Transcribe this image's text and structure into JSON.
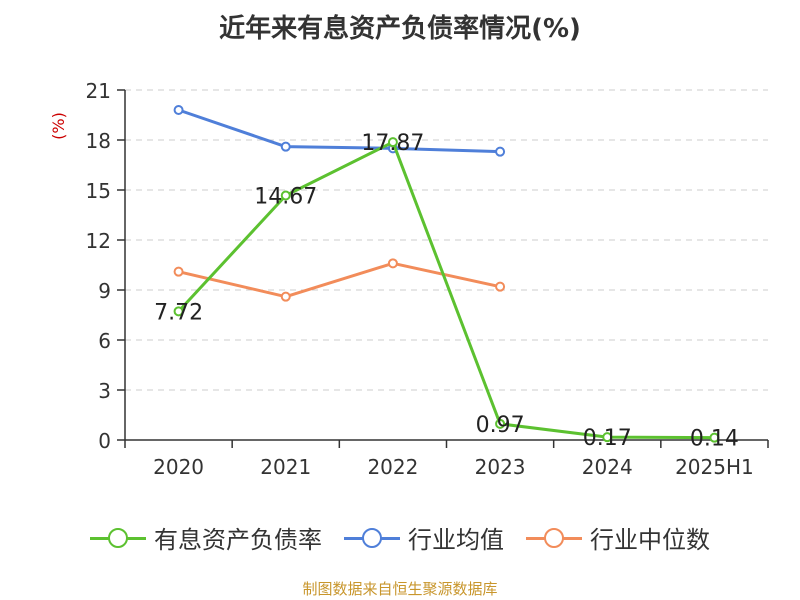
{
  "chart_data": {
    "type": "line",
    "title": "近年来有息资产负债率情况(%)",
    "ylabel": "(%)",
    "ylim": [
      0,
      21
    ],
    "yticks": [
      0,
      3,
      6,
      9,
      12,
      15,
      18,
      21
    ],
    "categories": [
      "2020",
      "2021",
      "2022",
      "2023",
      "2024",
      "2025H1"
    ],
    "grid": true,
    "legend_position": "bottom",
    "series": [
      {
        "name": "有息资产负债率",
        "color": "#5cc130",
        "values": [
          7.72,
          14.67,
          17.87,
          0.97,
          0.17,
          0.14
        ],
        "labels": [
          "7.72",
          "14.67",
          "17.87",
          "0.97",
          "0.17",
          "0.14"
        ]
      },
      {
        "name": "行业均值",
        "color": "#4f7fd9",
        "values": [
          19.8,
          17.6,
          17.5,
          17.3,
          null,
          null
        ]
      },
      {
        "name": "行业中位数",
        "color": "#f28c5a",
        "values": [
          10.1,
          8.6,
          10.6,
          9.2,
          null,
          null
        ]
      }
    ],
    "source": "制图数据来自恒生聚源数据库"
  }
}
